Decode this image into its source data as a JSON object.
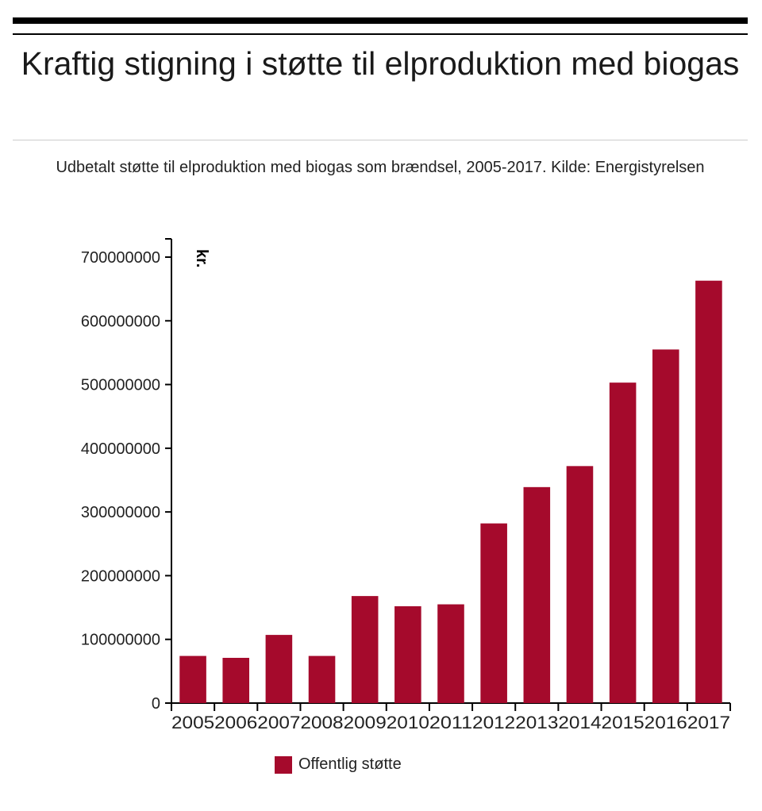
{
  "title": "Kraftig stigning i støtte til elproduktion med biogas",
  "subtitle": "Udbetalt støtte til elproduktion med biogas som brændsel, 2005-2017. Kilde: Energistyrelsen",
  "chart_data": {
    "type": "bar",
    "title": "Kraftig stigning i støtte til elproduktion med biogas",
    "subtitle": "Udbetalt støtte til elproduktion med biogas som brændsel, 2005-2017. Kilde: Energistyrelsen",
    "xlabel": "",
    "ylabel": "kr.",
    "ylim": [
      0,
      700000000
    ],
    "yticks": [
      "0",
      "100000000",
      "200000000",
      "300000000",
      "400000000",
      "500000000",
      "600000000",
      "700000000"
    ],
    "categories": [
      "2005",
      "2006",
      "2007",
      "2008",
      "2009",
      "2010",
      "2011",
      "2012",
      "2013",
      "2014",
      "2015",
      "2016",
      "2017"
    ],
    "series": [
      {
        "name": "Offentlig støtte",
        "color": "#a50a2c",
        "values": [
          74000000,
          71000000,
          107000000,
          74000000,
          168000000,
          152000000,
          155000000,
          282000000,
          339000000,
          372000000,
          503000000,
          555000000,
          663000000
        ]
      }
    ],
    "grid": false,
    "legend": "bottom-left"
  }
}
